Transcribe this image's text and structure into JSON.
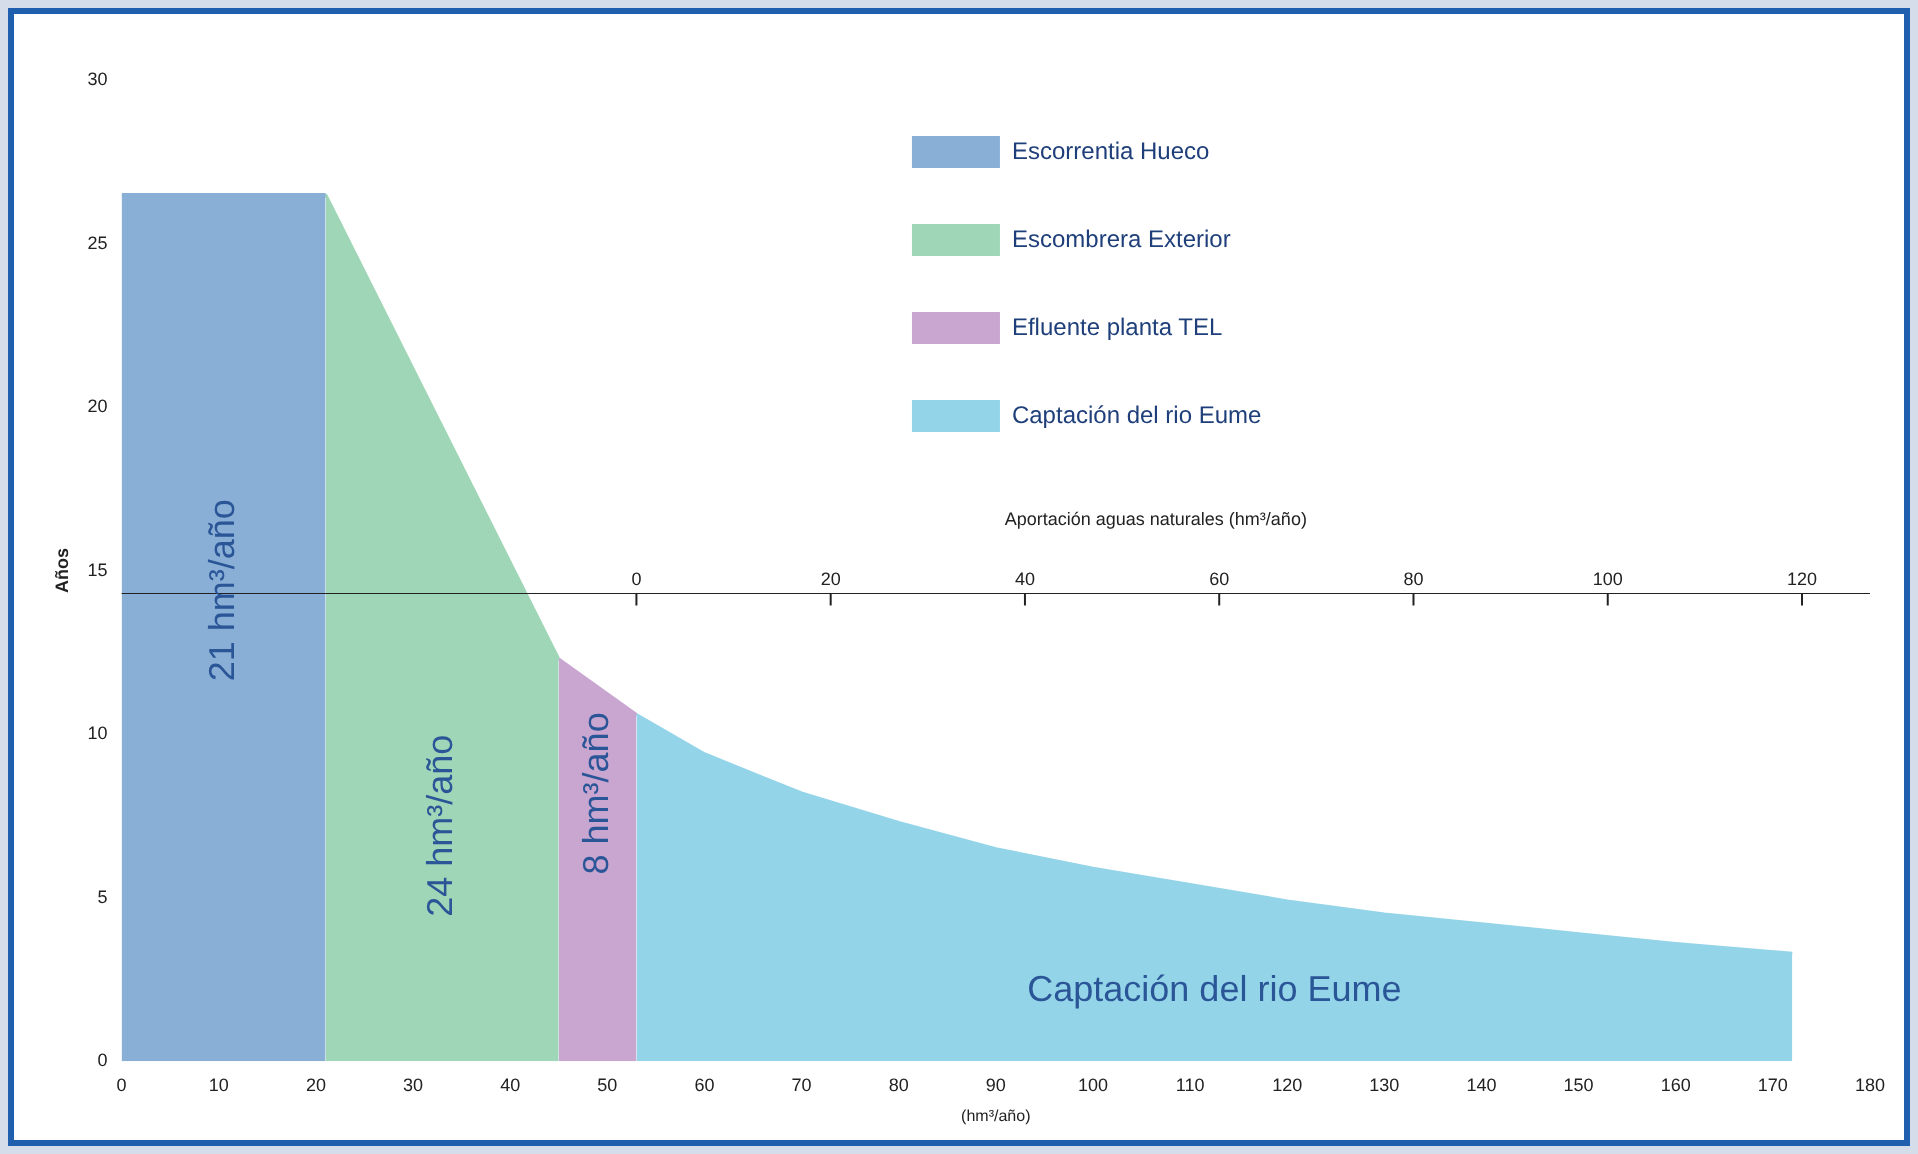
{
  "chart_data": {
    "type": "area",
    "xlabel": "(hm³/año)",
    "ylabel": "Años",
    "x2label": "Aportación aguas naturales (hm³/año)",
    "xlim": [
      0,
      180
    ],
    "xticks": [
      0,
      10,
      20,
      30,
      40,
      50,
      60,
      70,
      80,
      90,
      100,
      110,
      120,
      130,
      140,
      150,
      160,
      170,
      180
    ],
    "ylim": [
      0,
      30
    ],
    "yticks": [
      0,
      5,
      10,
      15,
      20,
      25,
      30
    ],
    "x2lim": [
      -53,
      127
    ],
    "x2ticks": [
      0,
      20,
      40,
      60,
      80,
      100,
      120
    ],
    "legend": "top right",
    "grid": false,
    "series": [
      {
        "name": "Escorrentia Hueco",
        "color": "#8aafd6",
        "x": [
          0,
          21
        ],
        "values": [
          26.5,
          26.5
        ]
      },
      {
        "name": "Escombrera Exterior",
        "color": "#a0d6b8",
        "x": [
          21,
          45
        ],
        "values": [
          26.5,
          12.3
        ]
      },
      {
        "name": "Efluente planta TEL",
        "color": "#c9a6d0",
        "x": [
          45,
          53
        ],
        "values": [
          12.3,
          10.6
        ]
      },
      {
        "name": "Captación del rio Eume",
        "color": "#93d4e8",
        "x": [
          53,
          60,
          70,
          80,
          90,
          100,
          110,
          120,
          130,
          140,
          150,
          160,
          172
        ],
        "values": [
          10.6,
          9.4,
          8.2,
          7.3,
          6.5,
          5.9,
          5.4,
          4.9,
          4.5,
          4.2,
          3.9,
          3.6,
          3.3
        ]
      }
    ],
    "annotations": [
      "21 hm³/año",
      "24 hm³/año",
      {
        "text": "8 hm³/año",
        "x": 49,
        "y": 11.4
      },
      "Captación del rio Eume"
    ]
  }
}
